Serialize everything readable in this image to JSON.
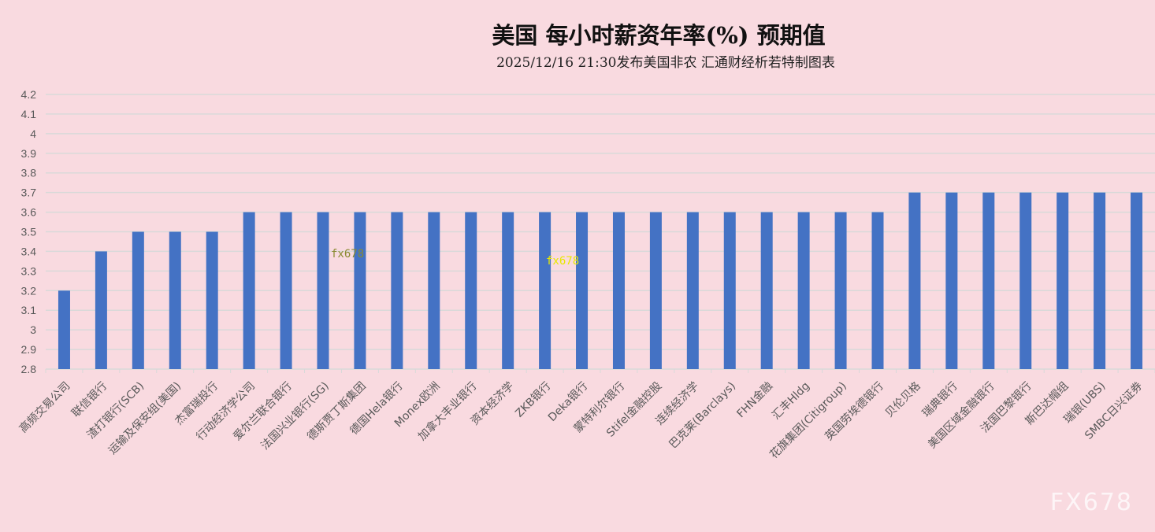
{
  "chart_data": {
    "type": "bar",
    "title": "美国  每小时薪资年率(%)  预期值",
    "subtitle": "2025/12/16 21:30发布美国非农  汇通财经析若特制图表",
    "categories": [
      "高频交易公司",
      "联信银行",
      "渣打银行(SCB)",
      "运输及保安组(美国)",
      "杰富瑞投行",
      "行动经济学公司",
      "爱尔兰联合银行",
      "法国兴业银行(SG)",
      "德斯贾丁斯集团",
      "德国Hela银行",
      "Monex欧洲",
      "加拿大丰业银行",
      "资本经济学",
      "ZKB银行",
      "Deka银行",
      "蒙特利尔银行",
      "Stifel金融控股",
      "连续经济学",
      "巴克莱(Barclays)",
      "FHN金融",
      "汇丰Hldg",
      "花旗集团(Citigroup)",
      "英国劳埃德银行",
      "贝伦贝格",
      "瑞典银行",
      "美国区域金融银行",
      "法国巴黎银行",
      "斯巴达帽组",
      "瑞银(UBS)",
      "SMBC日兴证券"
    ],
    "values": [
      3.2,
      3.4,
      3.5,
      3.5,
      3.5,
      3.6,
      3.6,
      3.6,
      3.6,
      3.6,
      3.6,
      3.6,
      3.6,
      3.6,
      3.6,
      3.6,
      3.6,
      3.6,
      3.6,
      3.6,
      3.6,
      3.6,
      3.6,
      3.7,
      3.7,
      3.7,
      3.7,
      3.7,
      3.7,
      3.7
    ],
    "ylim": [
      2.8,
      4.2
    ],
    "yticks": [
      "2.8",
      "2.9",
      "3",
      "3.1",
      "3.2",
      "3.3",
      "3.4",
      "3.5",
      "3.6",
      "3.7",
      "3.8",
      "3.9",
      "4",
      "4.1",
      "4.2"
    ],
    "grid": true,
    "bar_color": "#4472c4",
    "xlabel": "",
    "ylabel": ""
  },
  "watermarks": [
    "fx678",
    "fx678",
    "FX678"
  ],
  "colors": {
    "background": "#f9dae0",
    "grid": "#d9d9d9"
  }
}
